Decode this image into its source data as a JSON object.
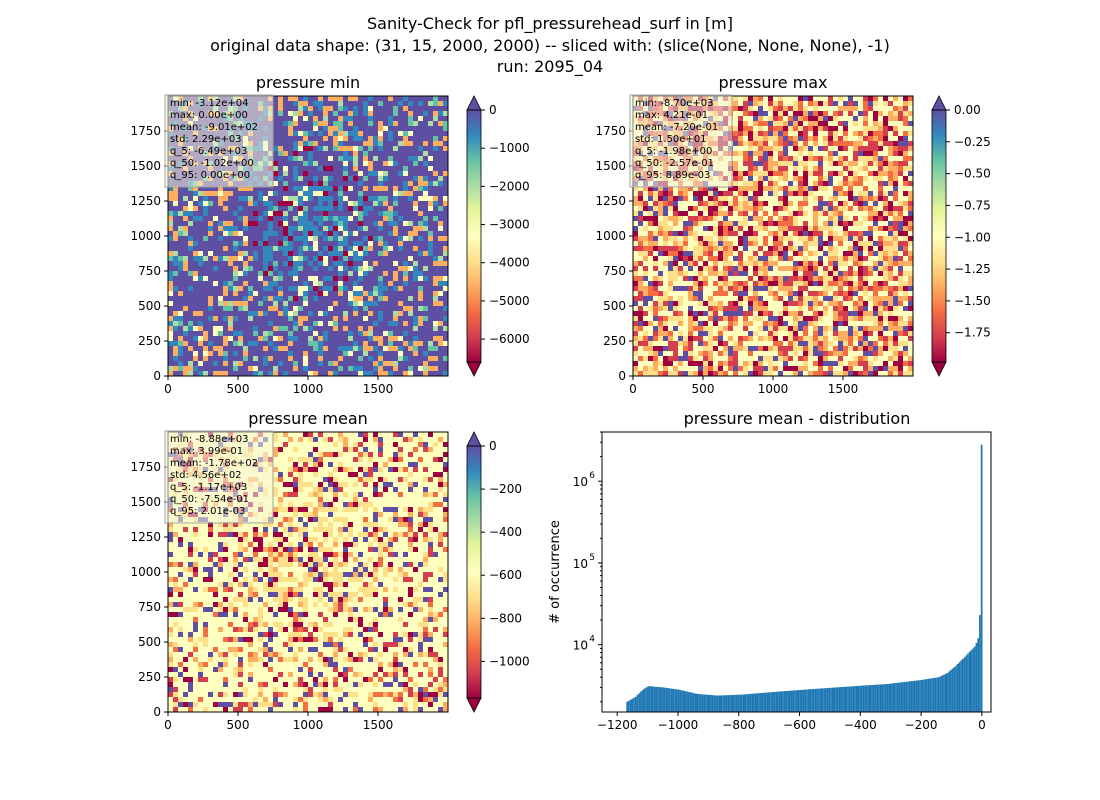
{
  "figure": {
    "title_lines": [
      "Sanity-Check for pfl_pressurehead_surf in [m]",
      "original data shape: (31, 15, 2000, 2000) -- sliced with: (slice(None, None, None), -1)",
      "run: 2095_04"
    ]
  },
  "colors": {
    "spectral": [
      "#9e0142",
      "#d53e4f",
      "#f46d43",
      "#fdae61",
      "#fee08b",
      "#ffffbf",
      "#e6f598",
      "#abdda4",
      "#66c2a5",
      "#3288bd",
      "#5e4fa2"
    ],
    "hist_bar": "#1f77b4",
    "text_box_bg": "#f5f5dc"
  },
  "chart_data": [
    {
      "type": "heatmap",
      "title": "pressure min",
      "xlim": [
        0,
        2000
      ],
      "ylim": [
        0,
        2000
      ],
      "xticks": [
        0,
        500,
        1000,
        1500
      ],
      "yticks": [
        0,
        250,
        500,
        750,
        1000,
        1250,
        1500,
        1750
      ],
      "colorbar": {
        "range": [
          -6600,
          0
        ],
        "ticks": [
          0,
          -1000,
          -2000,
          -3000,
          -4000,
          -5000,
          -6000
        ],
        "tick_labels": [
          "0",
          "−1000",
          "−2000",
          "−3000",
          "−4000",
          "−5000",
          "−6000"
        ],
        "extend": "both"
      },
      "stats": [
        "min: -3.12e+04",
        "max: 0.00e+00",
        "mean: -9.01e+02",
        "std: 2.29e+03",
        "q_5: -6.49e+03",
        "q_50: -1.02e+00",
        "q_95: 0.00e+00"
      ],
      "dominant": "high"
    },
    {
      "type": "heatmap",
      "title": "pressure max",
      "xlim": [
        0,
        2000
      ],
      "ylim": [
        0,
        2000
      ],
      "xticks": [
        0,
        500,
        1000,
        1500
      ],
      "yticks": [
        0,
        250,
        500,
        750,
        1000,
        1250,
        1500,
        1750
      ],
      "colorbar": {
        "range": [
          -1.98,
          0
        ],
        "ticks": [
          0,
          -0.25,
          -0.5,
          -0.75,
          -1.0,
          -1.25,
          -1.5,
          -1.75
        ],
        "tick_labels": [
          "0.00",
          "−0.25",
          "−0.50",
          "−0.75",
          "−1.00",
          "−1.25",
          "−1.50",
          "−1.75"
        ],
        "extend": "both"
      },
      "stats": [
        "min: -8.70e+03",
        "max: 4.21e-01",
        "mean: -7.20e-01",
        "std: 1.50e+01",
        "q_5: -1.98e+00",
        "q_50: -2.57e-01",
        "q_95: 8.89e-03"
      ],
      "dominant": "mixed"
    },
    {
      "type": "heatmap",
      "title": "pressure mean",
      "xlim": [
        0,
        2000
      ],
      "ylim": [
        0,
        2000
      ],
      "xticks": [
        0,
        500,
        1000,
        1500
      ],
      "yticks": [
        0,
        250,
        500,
        750,
        1000,
        1250,
        1500,
        1750
      ],
      "colorbar": {
        "range": [
          -1170,
          0
        ],
        "ticks": [
          0,
          -200,
          -400,
          -600,
          -800,
          -1000
        ],
        "tick_labels": [
          "0",
          "−200",
          "−400",
          "−600",
          "−800",
          "−1000"
        ],
        "extend": "both"
      },
      "stats": [
        "min: -8.88e+03",
        "max: 3.99e-01",
        "mean: -1.78e+02",
        "std: 4.56e+02",
        "q_5: -1.17e+03",
        "q_50: -7.54e-01",
        "q_95: 2.01e-03"
      ],
      "dominant": "mid"
    },
    {
      "type": "bar",
      "title": "pressure mean - distribution",
      "ylabel": "# of occurrence",
      "xlim": [
        -1250,
        30
      ],
      "ylog": true,
      "ylim": [
        1500,
        4000000
      ],
      "xticks": [
        -1200,
        -1000,
        -800,
        -600,
        -400,
        -200,
        0
      ],
      "xtick_labels": [
        "−1200",
        "−1000",
        "−800",
        "−600",
        "−400",
        "−200",
        "0"
      ],
      "yticks": [
        10000,
        100000,
        1000000
      ],
      "ytick_labels": [
        "10",
        "10",
        "10"
      ],
      "ytick_exponents": [
        "4",
        "5",
        "6"
      ],
      "bin_range": [
        -1170,
        2
      ],
      "bins": 200,
      "counts": [
        2000,
        2060,
        2120,
        2180,
        2240,
        2300,
        2420,
        2540,
        2660,
        2780,
        2900,
        2980,
        3060,
        3120,
        3100,
        3080,
        3060,
        3050,
        3040,
        3030,
        3010,
        3000,
        2980,
        2960,
        2940,
        2920,
        2900,
        2880,
        2860,
        2840,
        2820,
        2790,
        2760,
        2730,
        2700,
        2670,
        2640,
        2610,
        2580,
        2550,
        2520,
        2500,
        2490,
        2480,
        2470,
        2460,
        2450,
        2440,
        2430,
        2420,
        2410,
        2400,
        2390,
        2390,
        2390,
        2390,
        2400,
        2400,
        2410,
        2410,
        2420,
        2420,
        2430,
        2430,
        2440,
        2440,
        2450,
        2450,
        2460,
        2470,
        2480,
        2490,
        2500,
        2510,
        2520,
        2530,
        2540,
        2550,
        2560,
        2570,
        2580,
        2590,
        2600,
        2610,
        2620,
        2630,
        2640,
        2650,
        2660,
        2670,
        2680,
        2690,
        2700,
        2710,
        2720,
        2730,
        2740,
        2750,
        2760,
        2770,
        2780,
        2790,
        2800,
        2810,
        2820,
        2830,
        2840,
        2850,
        2860,
        2870,
        2880,
        2890,
        2900,
        2910,
        2920,
        2930,
        2940,
        2950,
        2960,
        2970,
        2980,
        2990,
        3000,
        3010,
        3020,
        3030,
        3040,
        3050,
        3060,
        3070,
        3080,
        3090,
        3100,
        3110,
        3120,
        3130,
        3140,
        3150,
        3160,
        3170,
        3180,
        3190,
        3200,
        3210,
        3220,
        3230,
        3240,
        3250,
        3260,
        3270,
        3280,
        3290,
        3300,
        3320,
        3340,
        3360,
        3380,
        3400,
        3420,
        3440,
        3460,
        3480,
        3500,
        3520,
        3540,
        3560,
        3580,
        3600,
        3620,
        3640,
        3660,
        3680,
        3700,
        3730,
        3760,
        3790,
        3820,
        3850,
        3880,
        3910,
        3940,
        3970,
        4000,
        4100,
        4200,
        4300,
        4400,
        4500,
        4700,
        4900,
        5100,
        5300,
        5500,
        5800,
        6100,
        6400,
        6700,
        7000,
        7400,
        7800,
        8200,
        8600,
        9000,
        9500,
        10500,
        12000,
        23000,
        2800000
      ]
    }
  ]
}
